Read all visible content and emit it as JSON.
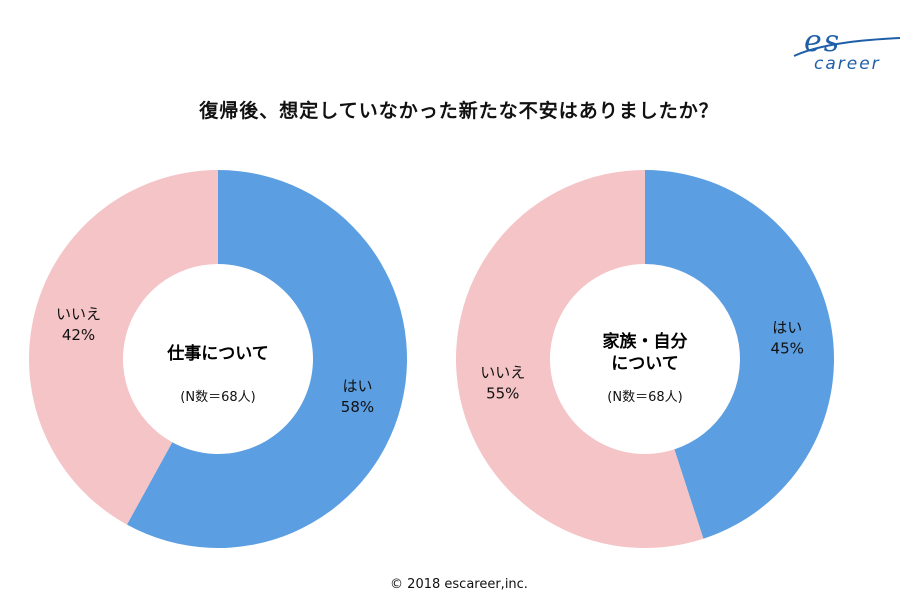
{
  "logo": {
    "es": "es",
    "word": "career",
    "color": "#1f5fa8"
  },
  "title": "復帰後、想定していなかった新たな不安はありましたか？",
  "footer": "© 2018 escareer,inc.",
  "colors": {
    "yes": "#5b9ee1",
    "no": "#f4c4c7"
  },
  "chart_data": [
    {
      "type": "pie",
      "title": "",
      "center": {
        "lines": [
          "仕事について"
        ],
        "n": "(N数＝68人)"
      },
      "slices": [
        {
          "label": "はい",
          "value": 58,
          "text": "58%"
        },
        {
          "label": "いいえ",
          "value": 42,
          "text": "42%"
        }
      ]
    },
    {
      "type": "pie",
      "title": "",
      "center": {
        "lines": [
          "家族・自分",
          "について"
        ],
        "n": "(N数＝68人)"
      },
      "slices": [
        {
          "label": "はい",
          "value": 45,
          "text": "45%"
        },
        {
          "label": "いいえ",
          "value": 55,
          "text": "55%"
        }
      ]
    }
  ]
}
